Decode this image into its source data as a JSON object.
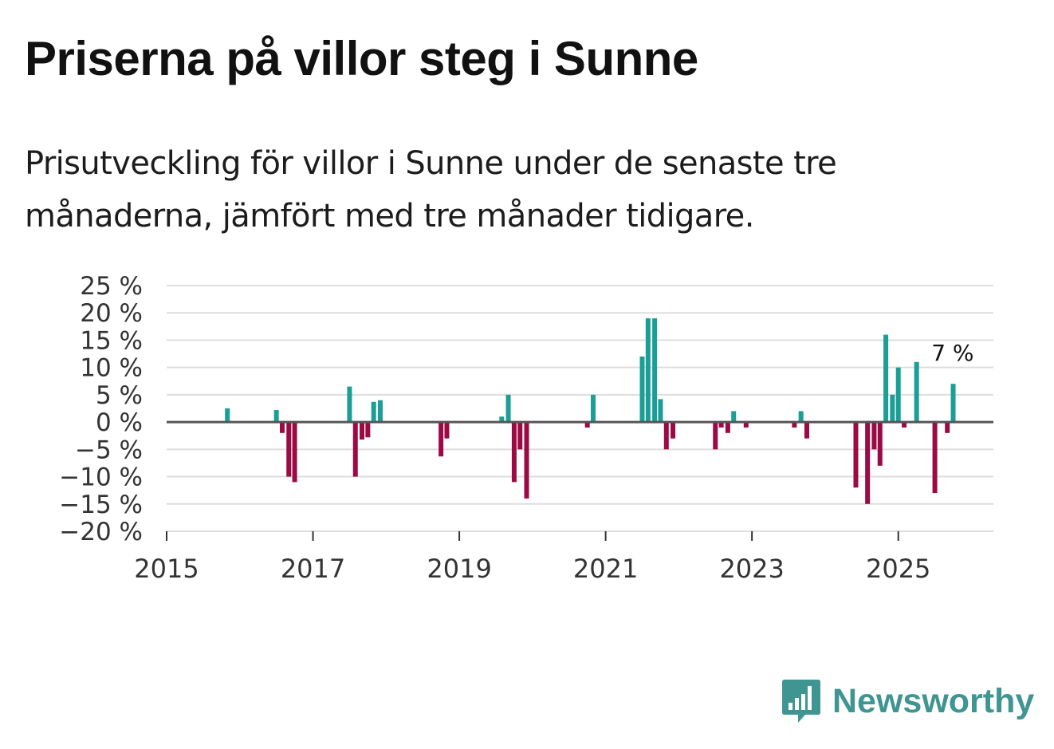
{
  "header": {
    "title": "Priserna på villor steg i Sunne",
    "subtitle": "Prisutveckling för villor i Sunne under de senaste tre månaderna, jämfört med tre månader tidigare."
  },
  "colors": {
    "positive": "#1a9e96",
    "negative": "#9b0a45",
    "grid": "#dddddd",
    "zero_line": "#555555",
    "brand": "#3f9591"
  },
  "brand": {
    "name": "Newsworthy",
    "icon": "newsworthy-logo-icon"
  },
  "chart_data": {
    "type": "bar",
    "title": "Priserna på villor steg i Sunne",
    "xlabel": "",
    "ylabel": "",
    "unit": "%",
    "ylim": [
      -20,
      25
    ],
    "xlim": [
      2015.0,
      2026.3
    ],
    "yticks": [
      25,
      20,
      15,
      10,
      5,
      0,
      -5,
      -10,
      -15,
      -20
    ],
    "ytick_labels": [
      "25 %",
      "20 %",
      "15 %",
      "10 %",
      "5 %",
      "0 %",
      "−5 %",
      "−10 %",
      "−15 %",
      "−20 %"
    ],
    "xticks": [
      2015,
      2017,
      2019,
      2021,
      2023,
      2025
    ],
    "xtick_labels": [
      "2015",
      "2017",
      "2019",
      "2021",
      "2023",
      "2025"
    ],
    "grid": true,
    "annotation": {
      "label": "7 %",
      "x": 2025.75,
      "y": 7
    },
    "points": [
      {
        "x": 2015.83,
        "y": 2.5
      },
      {
        "x": 2016.5,
        "y": 2.2
      },
      {
        "x": 2016.58,
        "y": -2
      },
      {
        "x": 2016.67,
        "y": -10
      },
      {
        "x": 2016.75,
        "y": -11
      },
      {
        "x": 2017.5,
        "y": 6.5
      },
      {
        "x": 2017.58,
        "y": -10
      },
      {
        "x": 2017.67,
        "y": -3.2
      },
      {
        "x": 2017.75,
        "y": -2.8
      },
      {
        "x": 2017.83,
        "y": 3.7
      },
      {
        "x": 2017.92,
        "y": 4
      },
      {
        "x": 2018.75,
        "y": -6.3
      },
      {
        "x": 2018.83,
        "y": -3
      },
      {
        "x": 2019.58,
        "y": 1
      },
      {
        "x": 2019.67,
        "y": 5
      },
      {
        "x": 2019.75,
        "y": -11
      },
      {
        "x": 2019.83,
        "y": -5
      },
      {
        "x": 2019.92,
        "y": -14
      },
      {
        "x": 2020.75,
        "y": -1
      },
      {
        "x": 2020.83,
        "y": 5
      },
      {
        "x": 2021.5,
        "y": 12
      },
      {
        "x": 2021.58,
        "y": 19
      },
      {
        "x": 2021.67,
        "y": 19
      },
      {
        "x": 2021.75,
        "y": 4.2
      },
      {
        "x": 2021.83,
        "y": -5
      },
      {
        "x": 2021.92,
        "y": -3
      },
      {
        "x": 2022.5,
        "y": -5
      },
      {
        "x": 2022.58,
        "y": -1
      },
      {
        "x": 2022.67,
        "y": -2
      },
      {
        "x": 2022.75,
        "y": 2
      },
      {
        "x": 2022.92,
        "y": -1
      },
      {
        "x": 2023.58,
        "y": -1
      },
      {
        "x": 2023.67,
        "y": 2
      },
      {
        "x": 2023.75,
        "y": -3
      },
      {
        "x": 2024.42,
        "y": -12
      },
      {
        "x": 2024.58,
        "y": -15
      },
      {
        "x": 2024.67,
        "y": -5
      },
      {
        "x": 2024.75,
        "y": -8
      },
      {
        "x": 2024.83,
        "y": 16
      },
      {
        "x": 2024.92,
        "y": 5
      },
      {
        "x": 2025.0,
        "y": 10
      },
      {
        "x": 2025.08,
        "y": -1
      },
      {
        "x": 2025.25,
        "y": 11
      },
      {
        "x": 2025.5,
        "y": -13
      },
      {
        "x": 2025.67,
        "y": -2
      },
      {
        "x": 2025.75,
        "y": 7
      }
    ]
  }
}
